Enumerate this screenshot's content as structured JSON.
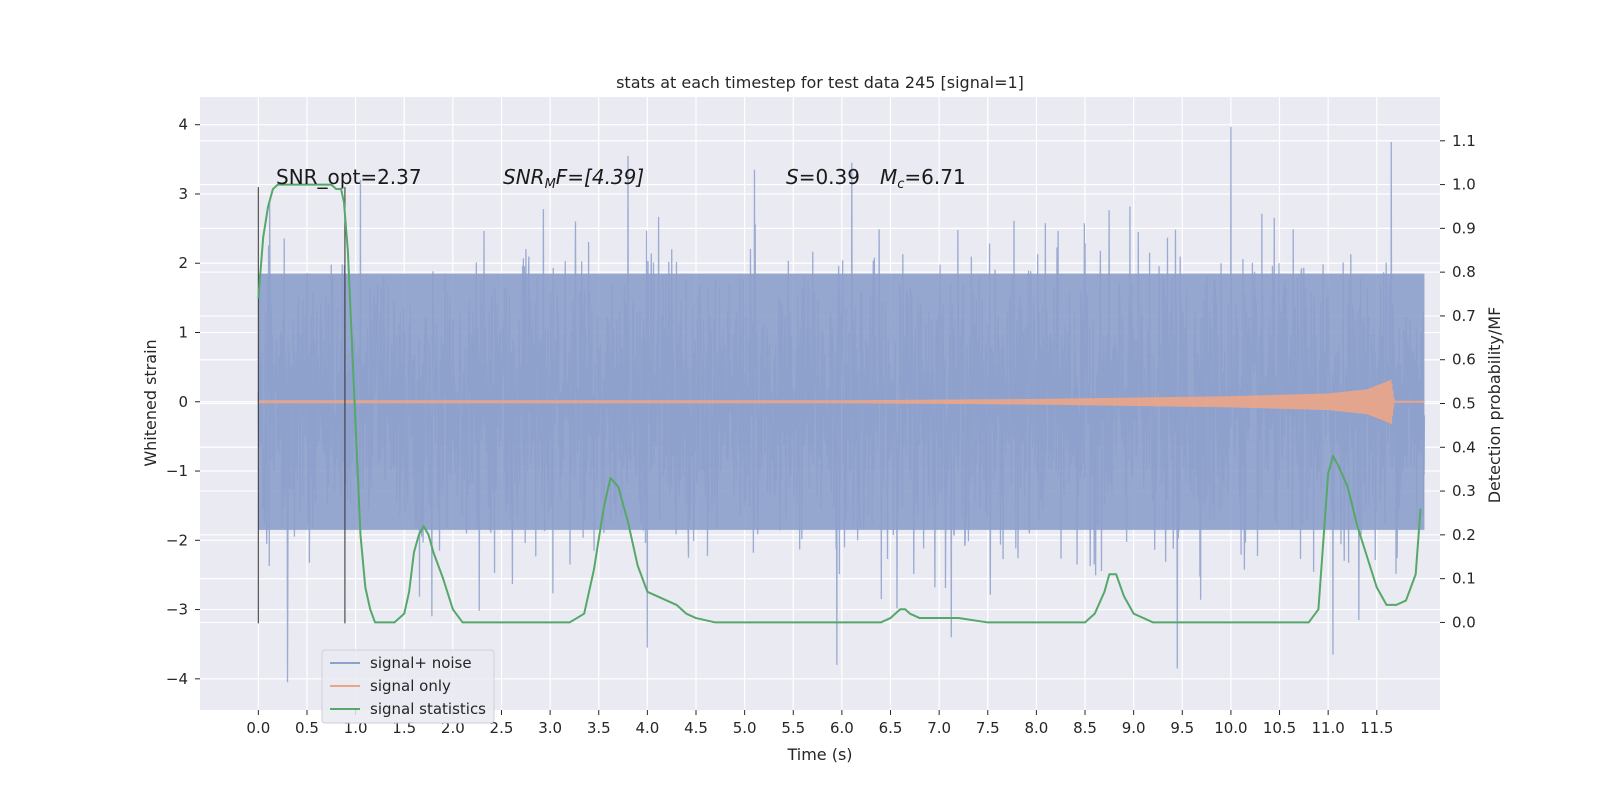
{
  "chart_data": {
    "type": "line",
    "title": "stats at each timestep for test data 245 [signal=1]",
    "xlabel": "Time (s)",
    "ylabel": "Whitened strain",
    "ylabel_right": "Detection probability/MF",
    "xlim": [
      -0.6,
      12.15
    ],
    "ylim": [
      -4.45,
      4.4
    ],
    "ylim_right": [
      -0.2,
      1.2
    ],
    "x_ticks": [
      "0.0",
      "0.5",
      "1.0",
      "1.5",
      "2.0",
      "2.5",
      "3.0",
      "3.5",
      "4.0",
      "4.5",
      "5.0",
      "5.5",
      "6.0",
      "6.5",
      "7.0",
      "7.5",
      "8.0",
      "8.5",
      "9.0",
      "9.5",
      "10.0",
      "10.5",
      "11.0",
      "11.5"
    ],
    "y_ticks": [
      "4",
      "3",
      "2",
      "1",
      "0",
      "−1",
      "−2",
      "−3",
      "−4"
    ],
    "y_right_ticks": [
      "1.1",
      "1.0",
      "0.9",
      "0.8",
      "0.7",
      "0.6",
      "0.5",
      "0.4",
      "0.3",
      "0.2",
      "0.1",
      "0.0"
    ],
    "grid": true,
    "legend_placement": "lower-left",
    "annotations": {
      "snr_opt": "SNR_opt=2.37",
      "snr_mf_sym": "SNR",
      "snr_mf_sub": "M",
      "snr_mf_rest": "F=[4.39]",
      "s_sym": "S",
      "s_rest": "=0.39",
      "mc_sym": "M",
      "mc_sub": "c",
      "mc_rest": "=6.71"
    },
    "vertical_lines_x": [
      0.0,
      0.89
    ],
    "series": [
      {
        "name": "signal+ noise",
        "color": "#8da0cb",
        "axis": "left",
        "x_range": [
          0.0,
          11.99
        ],
        "envelope": 1.85,
        "peak_samples": [
          {
            "x": 0.3,
            "y": -4.05
          },
          {
            "x": 1.05,
            "y": 3.2
          },
          {
            "x": 3.8,
            "y": 3.55
          },
          {
            "x": 4.0,
            "y": -3.55
          },
          {
            "x": 5.1,
            "y": 3.35
          },
          {
            "x": 6.1,
            "y": 3.45
          },
          {
            "x": 5.95,
            "y": -3.8
          },
          {
            "x": 9.45,
            "y": -3.85
          },
          {
            "x": 10.0,
            "y": 3.97
          },
          {
            "x": 11.05,
            "y": -3.65
          },
          {
            "x": 11.65,
            "y": 3.75
          }
        ]
      },
      {
        "name": "signal only",
        "color": "#e8a58a",
        "axis": "left",
        "x_range": [
          0.0,
          11.99
        ],
        "amplitude_points": [
          {
            "x": 0.0,
            "y": 0.02
          },
          {
            "x": 6.0,
            "y": 0.02
          },
          {
            "x": 8.0,
            "y": 0.04
          },
          {
            "x": 10.0,
            "y": 0.08
          },
          {
            "x": 11.0,
            "y": 0.12
          },
          {
            "x": 11.4,
            "y": 0.18
          },
          {
            "x": 11.55,
            "y": 0.26
          },
          {
            "x": 11.65,
            "y": 0.32
          },
          {
            "x": 11.68,
            "y": 0.0
          }
        ]
      },
      {
        "name": "signal statistics",
        "color": "#55a868",
        "axis": "right",
        "x": [
          0.0,
          0.05,
          0.1,
          0.15,
          0.2,
          0.3,
          0.4,
          0.5,
          0.6,
          0.7,
          0.75,
          0.8,
          0.85,
          0.88,
          0.92,
          0.95,
          1.0,
          1.05,
          1.1,
          1.15,
          1.2,
          1.3,
          1.4,
          1.5,
          1.55,
          1.6,
          1.65,
          1.7,
          1.75,
          1.8,
          1.9,
          2.0,
          2.1,
          2.3,
          2.6,
          3.0,
          3.2,
          3.35,
          3.45,
          3.55,
          3.62,
          3.7,
          3.8,
          3.9,
          4.0,
          4.1,
          4.2,
          4.3,
          4.4,
          4.5,
          4.7,
          5.0,
          5.5,
          6.0,
          6.4,
          6.5,
          6.55,
          6.6,
          6.65,
          6.7,
          6.8,
          7.0,
          7.2,
          7.5,
          8.0,
          8.5,
          8.6,
          8.7,
          8.75,
          8.82,
          8.9,
          9.0,
          9.2,
          9.5,
          10.0,
          10.5,
          10.8,
          10.9,
          11.0,
          11.05,
          11.1,
          11.2,
          11.3,
          11.4,
          11.5,
          11.55,
          11.6,
          11.65,
          11.7,
          11.8,
          11.9,
          11.95
        ],
        "y": [
          0.74,
          0.88,
          0.95,
          0.99,
          1.0,
          1.0,
          1.0,
          1.0,
          1.0,
          1.0,
          1.0,
          0.99,
          0.99,
          0.96,
          0.85,
          0.7,
          0.45,
          0.2,
          0.08,
          0.03,
          0.0,
          0.0,
          0.0,
          0.02,
          0.07,
          0.16,
          0.2,
          0.22,
          0.2,
          0.16,
          0.1,
          0.03,
          0.0,
          0.0,
          0.0,
          0.0,
          0.0,
          0.02,
          0.12,
          0.26,
          0.33,
          0.31,
          0.23,
          0.13,
          0.07,
          0.06,
          0.05,
          0.04,
          0.02,
          0.01,
          0.0,
          0.0,
          0.0,
          0.0,
          0.0,
          0.01,
          0.02,
          0.03,
          0.03,
          0.02,
          0.01,
          0.01,
          0.01,
          0.0,
          0.0,
          0.0,
          0.02,
          0.07,
          0.11,
          0.11,
          0.06,
          0.02,
          0.0,
          0.0,
          0.0,
          0.0,
          0.0,
          0.03,
          0.34,
          0.38,
          0.36,
          0.31,
          0.22,
          0.15,
          0.08,
          0.06,
          0.04,
          0.04,
          0.04,
          0.05,
          0.11,
          0.26
        ]
      }
    ]
  }
}
